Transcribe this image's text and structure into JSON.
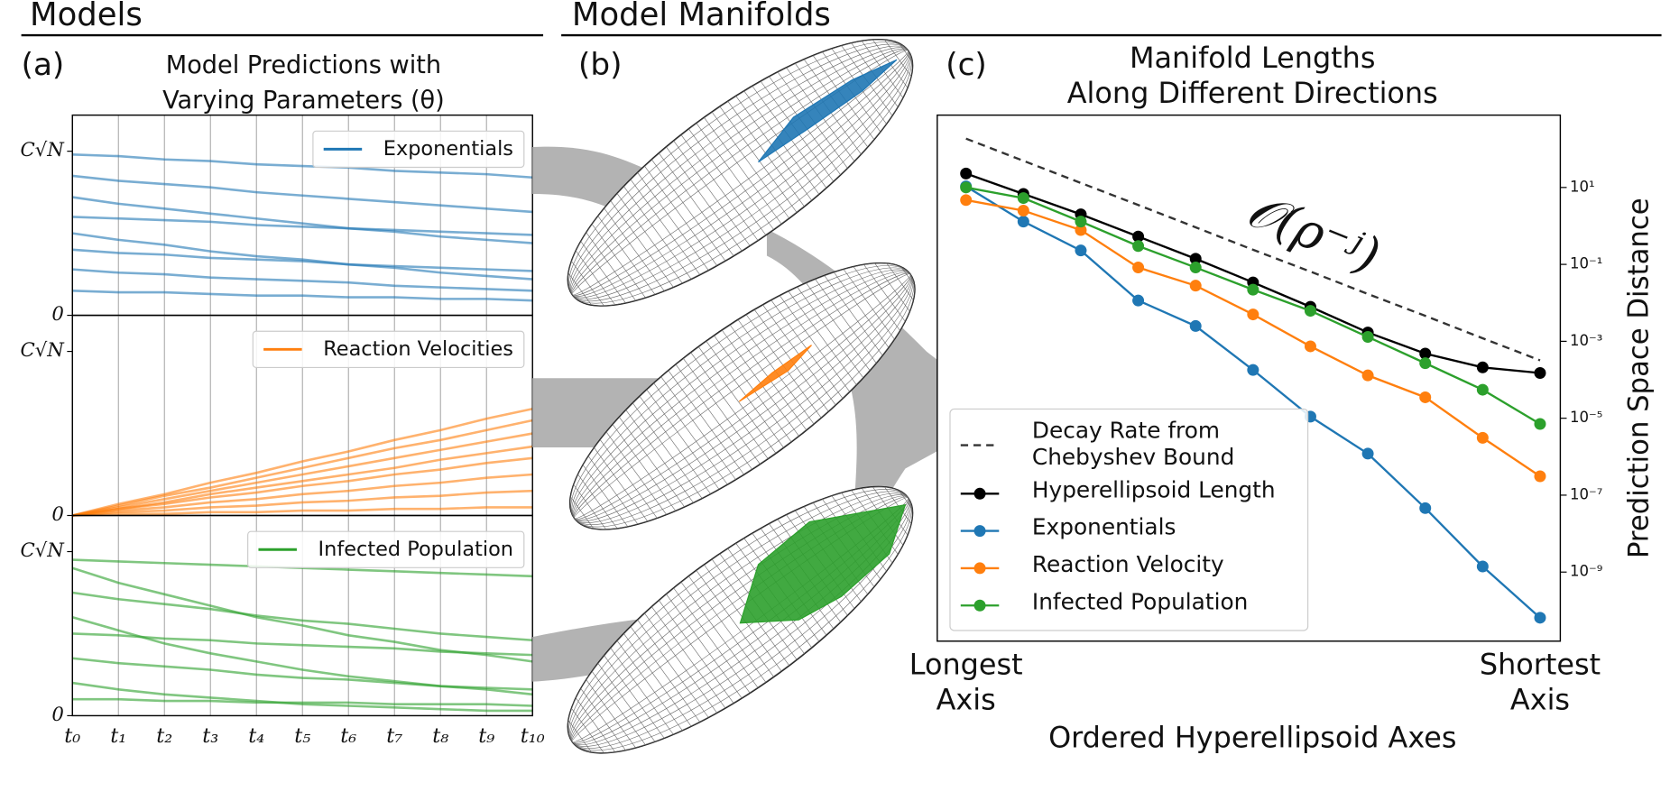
{
  "headers": [
    "Models",
    "Model Manifolds"
  ],
  "chart_data": [
    {
      "type": "line",
      "label": "(a)",
      "title": [
        "Model Predictions with",
        "Varying Parameters (θ)"
      ],
      "categories": [
        "t₀",
        "t₁",
        "t₂",
        "t₃",
        "t₄",
        "t₅",
        "t₆",
        "t₇",
        "t₈",
        "t₉",
        "t₁₀"
      ],
      "ylim": [
        0,
        1.22
      ],
      "yticks": [
        0,
        {
          "value": 1,
          "label": "C√N"
        }
      ],
      "grid": true,
      "legend": "upper right",
      "panels": [
        {
          "series": [
            {
              "name": "Exponentials",
              "color": "#1f77b4",
              "values": [
                [
                  0.98,
                  0.97,
                  0.95,
                  0.94,
                  0.92,
                  0.91,
                  0.9,
                  0.88,
                  0.87,
                  0.86,
                  0.84
                ],
                [
                  0.85,
                  0.82,
                  0.8,
                  0.78,
                  0.75,
                  0.73,
                  0.71,
                  0.69,
                  0.67,
                  0.65,
                  0.63
                ],
                [
                  0.72,
                  0.68,
                  0.65,
                  0.62,
                  0.59,
                  0.56,
                  0.53,
                  0.51,
                  0.48,
                  0.46,
                  0.44
                ],
                [
                  0.6,
                  0.59,
                  0.58,
                  0.57,
                  0.55,
                  0.54,
                  0.53,
                  0.52,
                  0.51,
                  0.5,
                  0.49
                ],
                [
                  0.5,
                  0.46,
                  0.43,
                  0.39,
                  0.36,
                  0.34,
                  0.31,
                  0.29,
                  0.26,
                  0.24,
                  0.22
                ],
                [
                  0.4,
                  0.38,
                  0.37,
                  0.35,
                  0.34,
                  0.33,
                  0.31,
                  0.3,
                  0.29,
                  0.28,
                  0.27
                ],
                [
                  0.28,
                  0.26,
                  0.25,
                  0.23,
                  0.22,
                  0.21,
                  0.2,
                  0.18,
                  0.17,
                  0.16,
                  0.15
                ],
                [
                  0.15,
                  0.14,
                  0.14,
                  0.13,
                  0.12,
                  0.12,
                  0.11,
                  0.11,
                  0.1,
                  0.1,
                  0.09
                ]
              ]
            }
          ]
        },
        {
          "series": [
            {
              "name": "Reaction Velocities",
              "color": "#ff7f0e",
              "values": [
                [
                  0,
                  0.07,
                  0.13,
                  0.2,
                  0.26,
                  0.33,
                  0.39,
                  0.46,
                  0.52,
                  0.59,
                  0.65
                ],
                [
                  0,
                  0.06,
                  0.12,
                  0.17,
                  0.23,
                  0.29,
                  0.35,
                  0.41,
                  0.46,
                  0.52,
                  0.58
                ],
                [
                  0,
                  0.05,
                  0.1,
                  0.15,
                  0.2,
                  0.25,
                  0.3,
                  0.35,
                  0.4,
                  0.45,
                  0.5
                ],
                [
                  0,
                  0.04,
                  0.08,
                  0.13,
                  0.17,
                  0.21,
                  0.25,
                  0.29,
                  0.34,
                  0.38,
                  0.42
                ],
                [
                  0,
                  0.04,
                  0.07,
                  0.11,
                  0.14,
                  0.18,
                  0.21,
                  0.25,
                  0.28,
                  0.32,
                  0.35
                ],
                [
                  0,
                  0.03,
                  0.05,
                  0.08,
                  0.1,
                  0.13,
                  0.15,
                  0.18,
                  0.2,
                  0.23,
                  0.25
                ],
                [
                  0,
                  0.02,
                  0.03,
                  0.05,
                  0.06,
                  0.08,
                  0.09,
                  0.11,
                  0.12,
                  0.14,
                  0.15
                ],
                [
                  0,
                  0.01,
                  0.01,
                  0.02,
                  0.02,
                  0.03,
                  0.03,
                  0.04,
                  0.04,
                  0.05,
                  0.05
                ]
              ]
            }
          ]
        },
        {
          "series": [
            {
              "name": "Infected Population",
              "color": "#2ca02c",
              "values": [
                [
                  0.95,
                  0.94,
                  0.93,
                  0.92,
                  0.91,
                  0.9,
                  0.89,
                  0.88,
                  0.87,
                  0.86,
                  0.85
                ],
                [
                  0.9,
                  0.81,
                  0.74,
                  0.67,
                  0.6,
                  0.55,
                  0.49,
                  0.45,
                  0.4,
                  0.37,
                  0.33
                ],
                [
                  0.75,
                  0.71,
                  0.68,
                  0.65,
                  0.61,
                  0.58,
                  0.56,
                  0.53,
                  0.5,
                  0.48,
                  0.46
                ],
                [
                  0.6,
                  0.52,
                  0.44,
                  0.38,
                  0.33,
                  0.28,
                  0.24,
                  0.21,
                  0.18,
                  0.16,
                  0.13
                ],
                [
                  0.5,
                  0.49,
                  0.47,
                  0.46,
                  0.44,
                  0.43,
                  0.42,
                  0.41,
                  0.39,
                  0.38,
                  0.37
                ],
                [
                  0.35,
                  0.32,
                  0.3,
                  0.28,
                  0.25,
                  0.23,
                  0.22,
                  0.2,
                  0.18,
                  0.17,
                  0.16
                ],
                [
                  0.2,
                  0.16,
                  0.13,
                  0.11,
                  0.09,
                  0.07,
                  0.06,
                  0.05,
                  0.04,
                  0.03,
                  0.03
                ],
                [
                  0.1,
                  0.1,
                  0.09,
                  0.09,
                  0.08,
                  0.08,
                  0.08,
                  0.07,
                  0.07,
                  0.07,
                  0.06
                ]
              ]
            }
          ]
        }
      ]
    },
    {
      "type": "diagram",
      "label": "(b)"
    },
    {
      "type": "line",
      "label": "(c)",
      "title": [
        "Manifold Lengths",
        "Along Different Directions"
      ],
      "categories": [
        "Longest Axis",
        null,
        null,
        null,
        null,
        null,
        null,
        null,
        null,
        null,
        "Shortest Axis"
      ],
      "xlabel": "Ordered Hyperellipsoid Axes",
      "ylabel": "Prediction Space Distance",
      "yscale": "log",
      "ylim": [
        1.6e-11,
        760
      ],
      "yticks": [
        {
          "value": 10,
          "label": "10¹"
        },
        {
          "value": 0.1,
          "label": "10⁻¹"
        },
        {
          "value": 0.001,
          "label": "10⁻³"
        },
        {
          "value": 1e-05,
          "label": "10⁻⁵"
        },
        {
          "value": 1e-07,
          "label": "10⁻⁷"
        },
        {
          "value": 1e-09,
          "label": "10⁻⁹"
        }
      ],
      "legend": "lower left",
      "annotation": "𝒪(ρ⁻ʲ)",
      "series": [
        {
          "name": "Decay Rate from Chebyshev Bound",
          "color": "#333333",
          "linestyle": "dashed",
          "values": [
            186,
            49.4,
            13.1,
            3.5,
            0.92,
            0.24,
            0.065,
            0.017,
            0.0046,
            0.0012,
            0.00032
          ]
        },
        {
          "name": "Hyperellipsoid Length",
          "color": "#000000",
          "marker": "o",
          "values": [
            23,
            6.8,
            2.0,
            0.53,
            0.14,
            0.034,
            0.0079,
            0.0017,
            0.00048,
            0.00021,
            0.00015
          ]
        },
        {
          "name": "Exponentials",
          "color": "#1f77b4",
          "marker": "o",
          "values": [
            10.7,
            1.3,
            0.23,
            0.0115,
            0.0025,
            0.00018,
            1.1e-05,
            1.2e-06,
            4.6e-08,
            1.4e-09,
            6.5e-11
          ]
        },
        {
          "name": "Reaction Velocity",
          "color": "#ff7f0e",
          "marker": "o",
          "values": [
            4.7,
            2.5,
            0.78,
            0.083,
            0.028,
            0.005,
            0.00074,
            0.00013,
            3.5e-05,
            3.1e-06,
            3.1e-07
          ]
        },
        {
          "name": "Infected Population",
          "color": "#2ca02c",
          "marker": "o",
          "values": [
            10,
            5.3,
            1.3,
            0.3,
            0.083,
            0.022,
            0.0062,
            0.0013,
            0.00027,
            5.5e-05,
            7.1e-06
          ]
        }
      ]
    }
  ]
}
